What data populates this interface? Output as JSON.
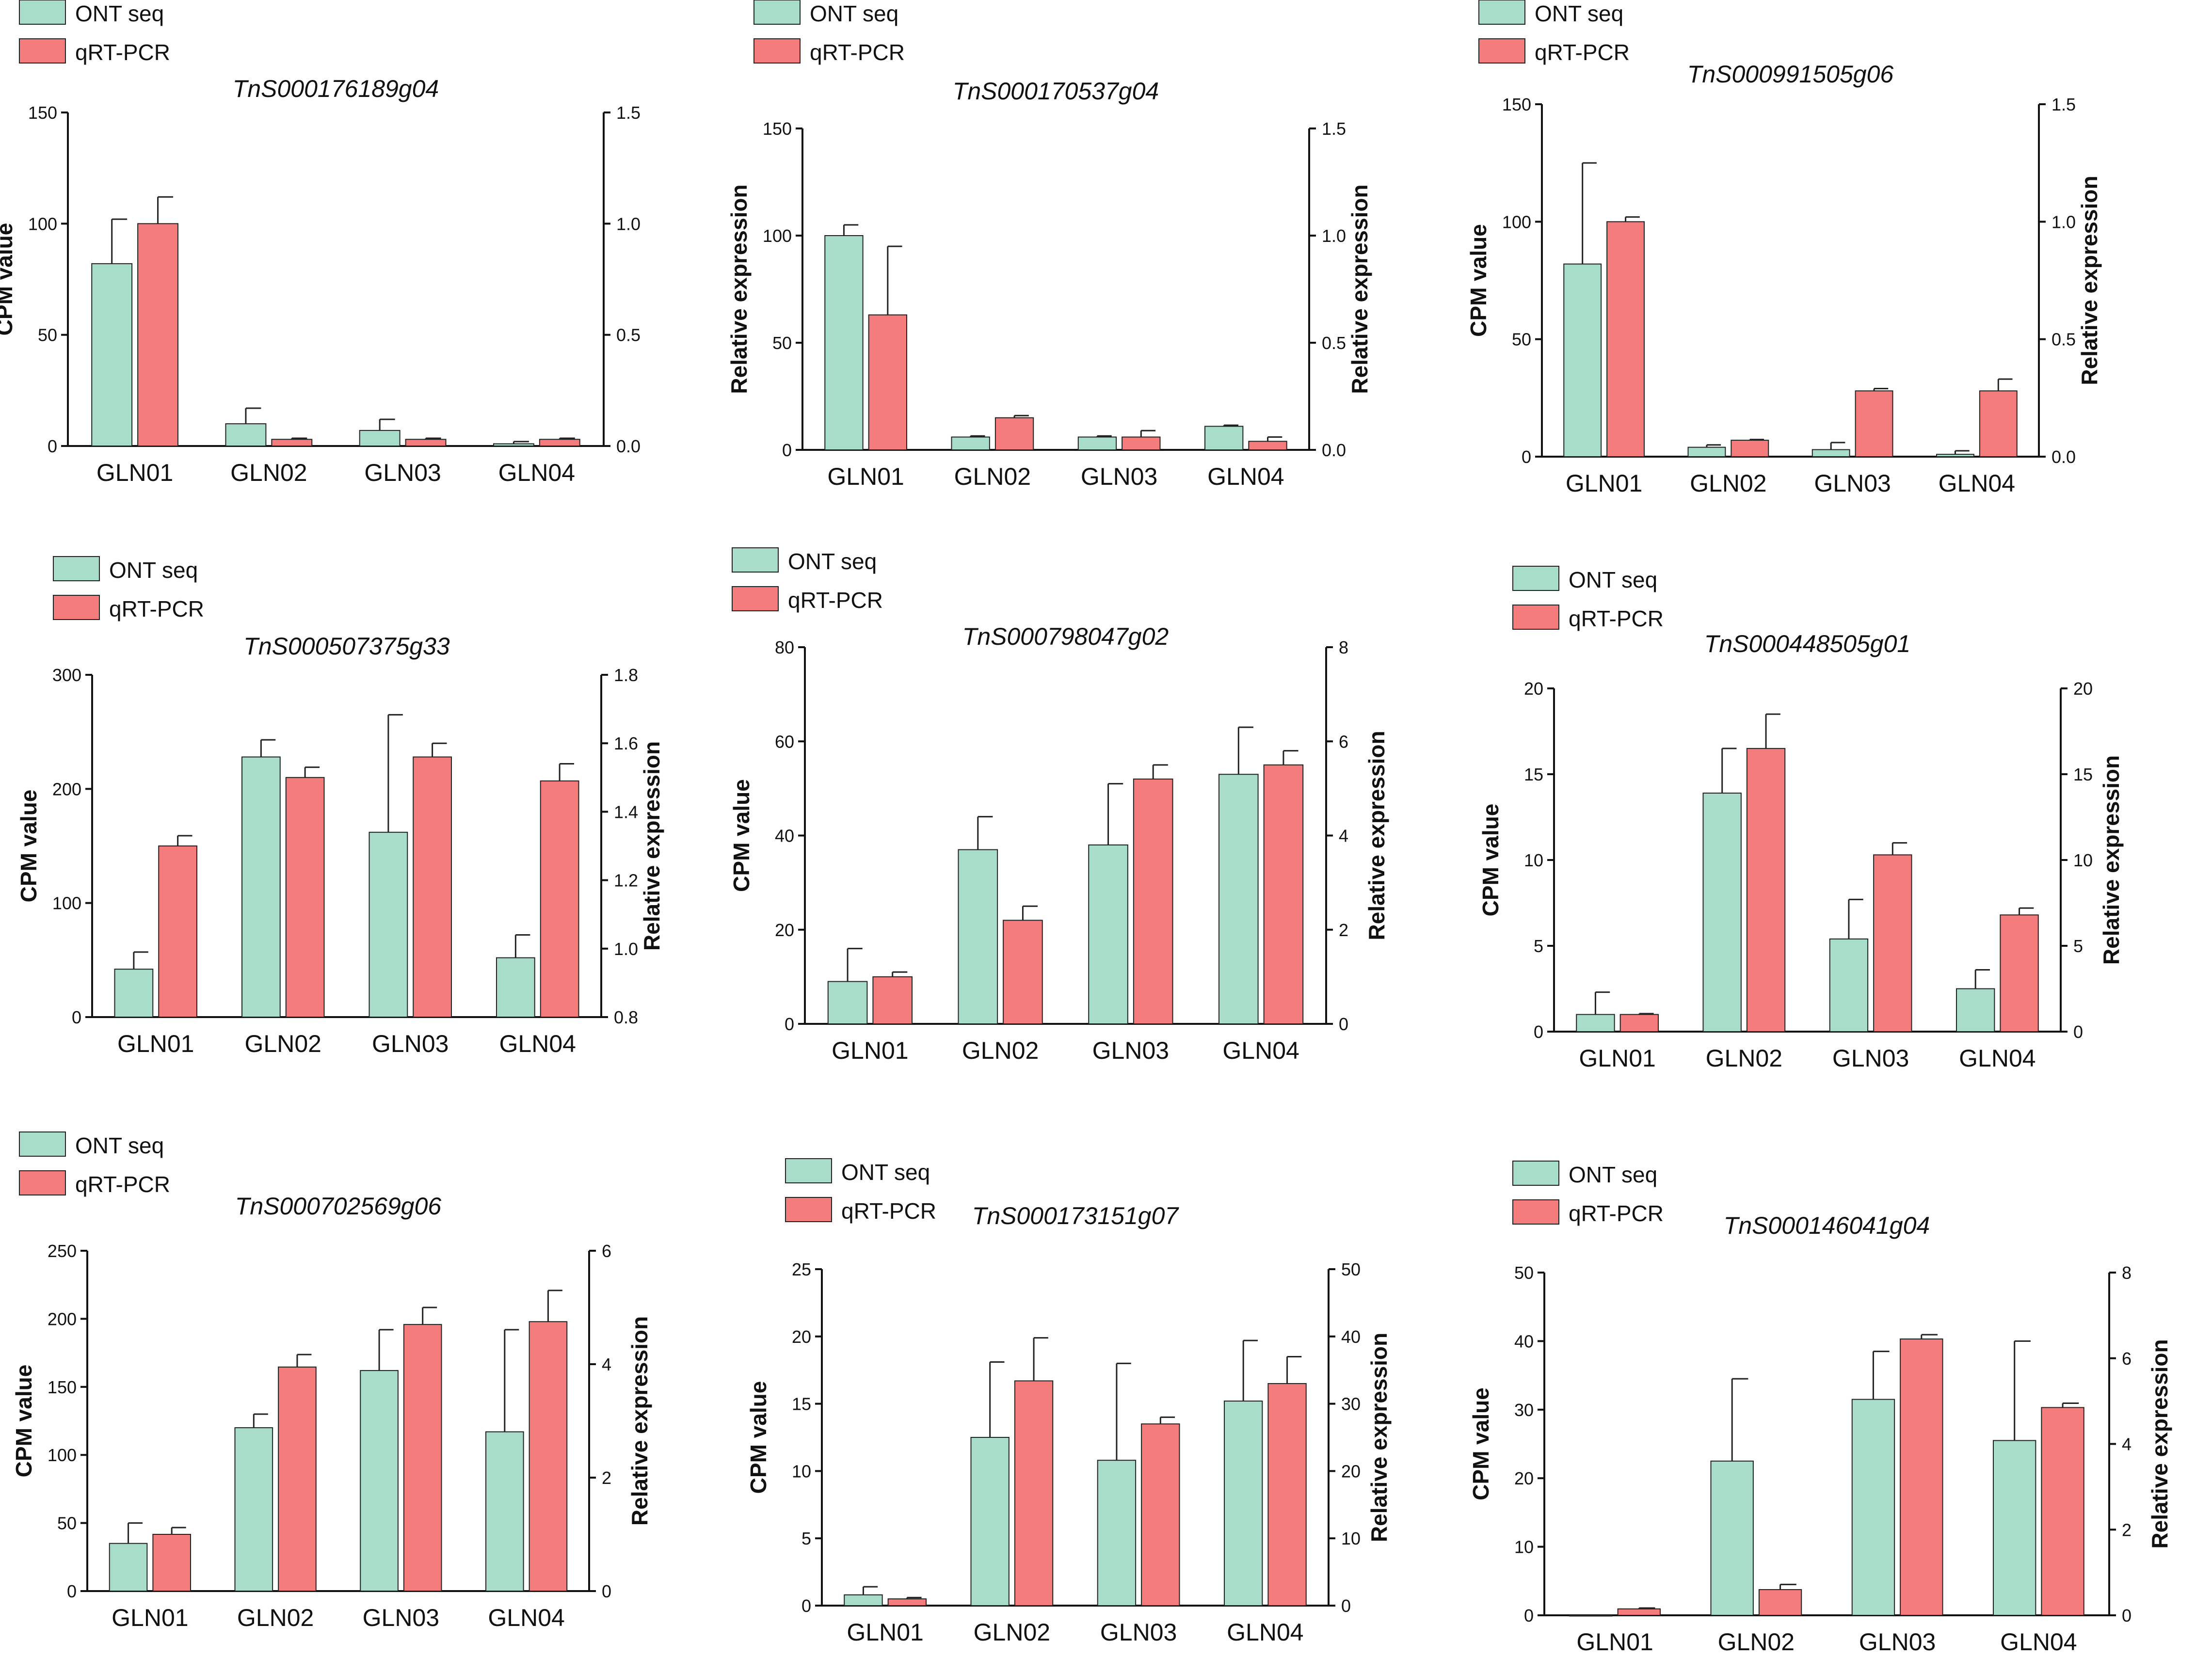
{
  "legend": {
    "ont_label": "ONT seq",
    "qpcr_label": "qRT-PCR"
  },
  "colors": {
    "ont": "#a8ddca",
    "qpcr": "#f47c7c",
    "axis": "#111111"
  },
  "chart_data": [
    {
      "type": "bar",
      "title": "TnS000176189g04",
      "categories": [
        "GLN01",
        "GLN02",
        "GLN03",
        "GLN04"
      ],
      "ylabel_left": "CPM value",
      "ylabel_right": "",
      "ylim_left": [
        0,
        150
      ],
      "ylim_right": [
        0,
        1.5
      ],
      "ticks_left": [
        "0",
        "50",
        "100",
        "150"
      ],
      "ticks_right": [
        "0.0",
        "0.5",
        "1.0",
        "1.5"
      ],
      "series": [
        {
          "name": "ONT seq",
          "axis": "left",
          "values": [
            82,
            10,
            7,
            1
          ],
          "errors": [
            20,
            7,
            5,
            1
          ]
        },
        {
          "name": "qRT-PCR",
          "axis": "right",
          "values": [
            1.0,
            0.03,
            0.03,
            0.03
          ],
          "errors": [
            0.12,
            0.005,
            0.005,
            0.005
          ]
        }
      ]
    },
    {
      "type": "bar",
      "title": "TnS000170537g04",
      "categories": [
        "GLN01",
        "GLN02",
        "GLN03",
        "GLN04"
      ],
      "ylabel_left": "Relative expression",
      "ylabel_right": "Relative expression",
      "ylim_left": [
        0,
        150
      ],
      "ylim_right": [
        0,
        1.5
      ],
      "ticks_left": [
        "0",
        "50",
        "100",
        "150"
      ],
      "ticks_right": [
        "0.0",
        "0.5",
        "1.0",
        "1.5"
      ],
      "series": [
        {
          "name": "ONT seq",
          "axis": "left",
          "values": [
            100,
            6,
            6,
            11
          ],
          "errors": [
            5,
            0.5,
            0.5,
            0.5
          ]
        },
        {
          "name": "qRT-PCR",
          "axis": "right",
          "values": [
            0.63,
            0.15,
            0.06,
            0.04
          ],
          "errors": [
            0.32,
            0.01,
            0.03,
            0.02
          ]
        }
      ]
    },
    {
      "type": "bar",
      "title": "TnS000991505g06",
      "categories": [
        "GLN01",
        "GLN02",
        "GLN03",
        "GLN04"
      ],
      "ylabel_left": "CPM value",
      "ylabel_right": "Relative expression",
      "ylim_left": [
        0,
        150
      ],
      "ylim_right": [
        0,
        1.5
      ],
      "ticks_left": [
        "0",
        "50",
        "100",
        "150"
      ],
      "ticks_right": [
        "0.0",
        "0.5",
        "1.0",
        "1.5"
      ],
      "series": [
        {
          "name": "ONT seq",
          "axis": "left",
          "values": [
            82,
            4,
            3,
            1
          ],
          "errors": [
            43,
            1,
            3,
            1.5
          ]
        },
        {
          "name": "qRT-PCR",
          "axis": "right",
          "values": [
            1.0,
            0.07,
            0.28,
            0.28
          ],
          "errors": [
            0.02,
            0.003,
            0.01,
            0.05
          ]
        }
      ]
    },
    {
      "type": "bar",
      "title": "TnS000507375g33",
      "categories": [
        "GLN01",
        "GLN02",
        "GLN03",
        "GLN04"
      ],
      "ylabel_left": "CPM value",
      "ylabel_right": "Relative expression",
      "ylim_left": [
        0,
        300
      ],
      "ylim_right": [
        0.8,
        1.8
      ],
      "ticks_left": [
        "0",
        "100",
        "200",
        "300"
      ],
      "ticks_right": [
        "0.8",
        "1.0",
        "1.2",
        "1.4",
        "1.6",
        "1.8"
      ],
      "series": [
        {
          "name": "ONT seq",
          "axis": "left",
          "values": [
            42,
            228,
            162,
            52
          ],
          "errors": [
            15,
            15,
            103,
            20
          ]
        },
        {
          "name": "qRT-PCR",
          "axis": "right",
          "values": [
            1.3,
            1.5,
            1.56,
            1.49
          ],
          "errors": [
            0.03,
            0.03,
            0.04,
            0.05
          ]
        }
      ]
    },
    {
      "type": "bar",
      "title": "TnS000798047g02",
      "categories": [
        "GLN01",
        "GLN02",
        "GLN03",
        "GLN04"
      ],
      "ylabel_left": "CPM value",
      "ylabel_right": "Relative expression",
      "ylim_left": [
        0,
        80
      ],
      "ylim_right": [
        0,
        8
      ],
      "ticks_left": [
        "0",
        "20",
        "40",
        "60",
        "80"
      ],
      "ticks_right": [
        "0",
        "2",
        "4",
        "6",
        "8"
      ],
      "series": [
        {
          "name": "ONT seq",
          "axis": "left",
          "values": [
            9,
            37,
            38,
            53
          ],
          "errors": [
            7,
            7,
            13,
            10
          ]
        },
        {
          "name": "qRT-PCR",
          "axis": "right",
          "values": [
            1.0,
            2.2,
            5.2,
            5.5
          ],
          "errors": [
            0.1,
            0.3,
            0.3,
            0.3
          ]
        }
      ]
    },
    {
      "type": "bar",
      "title": "TnS000448505g01",
      "categories": [
        "GLN01",
        "GLN02",
        "GLN03",
        "GLN04"
      ],
      "ylabel_left": "CPM value",
      "ylabel_right": "Relative expression",
      "ylim_left": [
        0,
        20
      ],
      "ylim_right": [
        0,
        20
      ],
      "ticks_left": [
        "0",
        "5",
        "10",
        "15",
        "20"
      ],
      "ticks_right": [
        "0",
        "5",
        "10",
        "15",
        "20"
      ],
      "series": [
        {
          "name": "ONT seq",
          "axis": "left",
          "values": [
            1,
            13.9,
            5.4,
            2.5
          ],
          "errors": [
            1.3,
            2.6,
            2.3,
            1.1
          ]
        },
        {
          "name": "qRT-PCR",
          "axis": "right",
          "values": [
            1.0,
            16.5,
            10.3,
            6.8
          ],
          "errors": [
            0.05,
            2.0,
            0.7,
            0.4
          ]
        }
      ]
    },
    {
      "type": "bar",
      "title": "TnS000702569g06",
      "categories": [
        "GLN01",
        "GLN02",
        "GLN03",
        "GLN04"
      ],
      "ylabel_left": "CPM value",
      "ylabel_right": "Relative expression",
      "ylim_left": [
        0,
        250
      ],
      "ylim_right": [
        0,
        6
      ],
      "ticks_left": [
        "0",
        "50",
        "100",
        "150",
        "200",
        "250"
      ],
      "ticks_right": [
        "0",
        "2",
        "4",
        "6"
      ],
      "series": [
        {
          "name": "ONT seq",
          "axis": "left",
          "values": [
            35,
            120,
            162,
            117
          ],
          "errors": [
            15,
            10,
            30,
            75
          ]
        },
        {
          "name": "qRT-PCR",
          "axis": "right",
          "values": [
            1.0,
            3.95,
            4.7,
            4.75
          ],
          "errors": [
            0.12,
            0.22,
            0.3,
            0.55
          ]
        }
      ]
    },
    {
      "type": "bar",
      "title": "TnS000173151g07",
      "categories": [
        "GLN01",
        "GLN02",
        "GLN03",
        "GLN04"
      ],
      "ylabel_left": "CPM value",
      "ylabel_right": "Relative expression",
      "ylim_left": [
        0,
        25
      ],
      "ylim_right": [
        0,
        50
      ],
      "ticks_left": [
        "0",
        "5",
        "10",
        "15",
        "20",
        "25"
      ],
      "ticks_right": [
        "0",
        "10",
        "20",
        "30",
        "40",
        "50"
      ],
      "series": [
        {
          "name": "ONT seq",
          "axis": "left",
          "values": [
            0.8,
            12.5,
            10.8,
            15.2
          ],
          "errors": [
            0.6,
            5.6,
            7.2,
            4.5
          ]
        },
        {
          "name": "qRT-PCR",
          "axis": "right",
          "values": [
            1.0,
            33.4,
            27.0,
            33.0
          ],
          "errors": [
            0.2,
            6.4,
            1.0,
            4.0
          ]
        }
      ]
    },
    {
      "type": "bar",
      "title": "TnS000146041g04",
      "categories": [
        "GLN01",
        "GLN02",
        "GLN03",
        "GLN04"
      ],
      "ylabel_left": "CPM value",
      "ylabel_right": "Relative expression",
      "ylim_left": [
        0,
        50
      ],
      "ylim_right": [
        0,
        8
      ],
      "ticks_left": [
        "0",
        "10",
        "20",
        "30",
        "40",
        "50"
      ],
      "ticks_right": [
        "0",
        "2",
        "4",
        "6",
        "8"
      ],
      "series": [
        {
          "name": "ONT seq",
          "axis": "left",
          "values": [
            0,
            22.5,
            31.5,
            25.5
          ],
          "errors": [
            0,
            12,
            7,
            14.5
          ]
        },
        {
          "name": "qRT-PCR",
          "axis": "right",
          "values": [
            0.15,
            0.6,
            6.45,
            4.85
          ],
          "errors": [
            0.02,
            0.12,
            0.1,
            0.1
          ]
        }
      ]
    }
  ]
}
